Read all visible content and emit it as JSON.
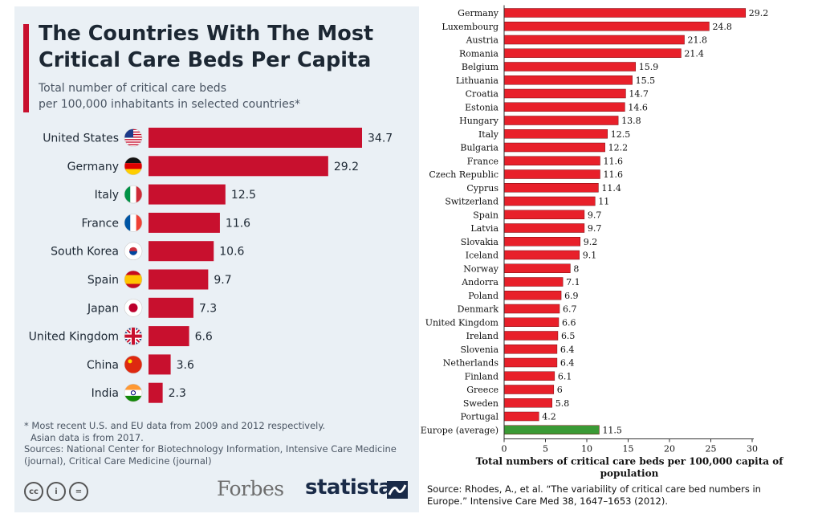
{
  "left": {
    "title": "The Countries With The Most Critical Care Beds Per Capita",
    "subtitle_line1": "Total number of critical care beds",
    "subtitle_line2": "per 100,000 inhabitants in selected countries*",
    "footnote_line1": "* Most recent U.S. and EU data from 2009 and 2012 respectively.",
    "footnote_line2": "Asian data is from 2017.",
    "sources_line1": "Sources: National Center for Biotechnology Information, Intensive Care Medicine",
    "sources_line2": "(journal), Critical Care Medicine (journal)",
    "cc_icons": [
      "cc",
      "i",
      "="
    ],
    "brand_forbes": "Forbes",
    "brand_statista": "statista"
  },
  "right": {
    "source_line1": "Source: Rhodes, A., et al. “The variability of critical care bed numbers in",
    "source_line2": "Europe.” Intensive Care Med 38, 1647–1653 (2012)."
  },
  "chart_data": [
    {
      "type": "bar",
      "orientation": "horizontal",
      "title": "The Countries With The Most Critical Care Beds Per Capita",
      "subtitle": "Total number of critical care beds per 100,000 inhabitants in selected countries*",
      "categories": [
        "United States",
        "Germany",
        "Italy",
        "France",
        "South Korea",
        "Spain",
        "Japan",
        "United Kingdom",
        "China",
        "India"
      ],
      "values": [
        34.7,
        29.2,
        12.5,
        11.6,
        10.6,
        9.7,
        7.3,
        6.6,
        3.6,
        2.3
      ],
      "value_labels": [
        "34.7",
        "29.2",
        "12.5",
        "11.6",
        "10.6",
        "9.7",
        "7.3",
        "6.6",
        "3.6",
        "2.3"
      ],
      "bar_color": "#c8102e",
      "xlim": [
        0,
        34.7
      ],
      "grid": false
    },
    {
      "type": "bar",
      "orientation": "horizontal",
      "xlabel_line1": "Total numbers of critical care beds per 100,000 capita of",
      "xlabel_line2": "population",
      "categories": [
        "Germany",
        "Luxembourg",
        "Austria",
        "Romania",
        "Belgium",
        "Lithuania",
        "Croatia",
        "Estonia",
        "Hungary",
        "Italy",
        "Bulgaria",
        "France",
        "Czech Republic",
        "Cyprus",
        "Switzerland",
        "Spain",
        "Latvia",
        "Slovakia",
        "Iceland",
        "Norway",
        "Andorra",
        "Poland",
        "Denmark",
        "United Kingdom",
        "Ireland",
        "Slovenia",
        "Netherlands",
        "Finland",
        "Greece",
        "Sweden",
        "Portugal",
        "Europe (average)"
      ],
      "values": [
        29.2,
        24.8,
        21.8,
        21.4,
        15.9,
        15.5,
        14.7,
        14.6,
        13.8,
        12.5,
        12.2,
        11.6,
        11.6,
        11.4,
        11,
        9.7,
        9.7,
        9.2,
        9.1,
        8,
        7.1,
        6.9,
        6.7,
        6.6,
        6.5,
        6.4,
        6.4,
        6.1,
        6,
        5.8,
        4.2,
        11.5
      ],
      "value_labels": [
        "29.2",
        "24.8",
        "21.8",
        "21.4",
        "15.9",
        "15.5",
        "14.7",
        "14.6",
        "13.8",
        "12.5",
        "12.2",
        "11.6",
        "11.6",
        "11.4",
        "11",
        "9.7",
        "9.7",
        "9.2",
        "9.1",
        "8",
        "7.1",
        "6.9",
        "6.7",
        "6.6",
        "6.5",
        "6.4",
        "6.4",
        "6.1",
        "6",
        "5.8",
        "4.2",
        "11.5"
      ],
      "bar_color": "#e8202a",
      "average_bar_color": "#3a9a35",
      "xlim": [
        0,
        30
      ],
      "xticks": [
        0,
        5,
        10,
        15,
        20,
        25,
        30
      ],
      "xtick_labels": [
        "0",
        "5",
        "10",
        "15",
        "20",
        "25",
        "30"
      ],
      "grid": false
    }
  ]
}
